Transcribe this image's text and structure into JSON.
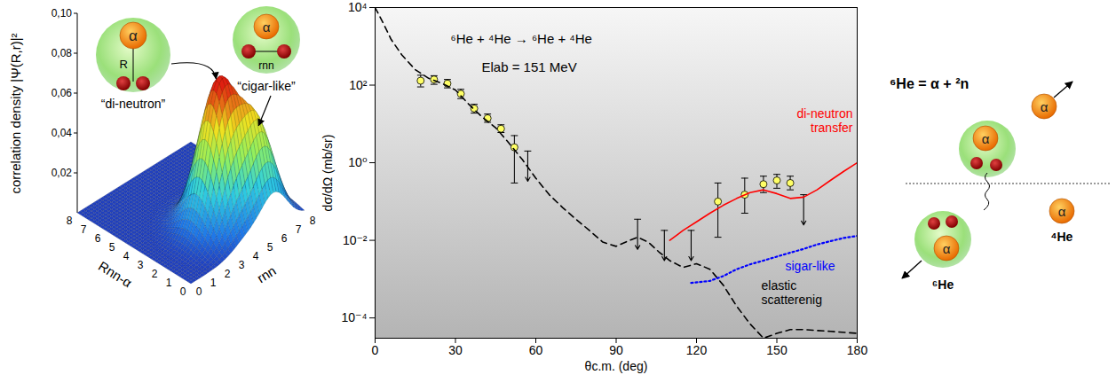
{
  "chart_data": {
    "type": "scatter",
    "title": "⁶He + ⁴He → ⁶He + ⁴He",
    "subtitle": "Elab = 151 MeV",
    "x_label": "θc.m. (deg)",
    "y_label": "dσ/dΩ (mb/sr)",
    "xlim": [
      0,
      180
    ],
    "xticks": [
      0,
      30,
      60,
      90,
      120,
      150,
      180
    ],
    "ylim": [
      3e-05,
      10000
    ],
    "yticks": [
      {
        "value": 10000,
        "label": "10⁴"
      },
      {
        "value": 100,
        "label": "10²"
      },
      {
        "value": 1,
        "label": "10⁰"
      },
      {
        "value": 0.01,
        "label": "10⁻²"
      },
      {
        "value": 0.0001,
        "label": "10⁻⁴"
      }
    ],
    "log": "y",
    "grid": false,
    "series": [
      {
        "type": "scatter",
        "marker": "circle",
        "color": "#ffff66",
        "x": [
          17,
          22,
          27,
          32,
          37,
          42,
          47,
          52,
          128,
          138,
          145,
          150,
          155
        ],
        "values": [
          130,
          140,
          110,
          60,
          25,
          14,
          7.5,
          2.5,
          0.1,
          0.15,
          0.28,
          0.35,
          0.3
        ],
        "lower": [
          90,
          105,
          85,
          45,
          19,
          11,
          6,
          0.3,
          0.012,
          0.05,
          0.17,
          0.22,
          0.2
        ],
        "upper": [
          180,
          175,
          140,
          78,
          32,
          18,
          9.5,
          5,
          0.3,
          0.4,
          0.45,
          0.5,
          0.45
        ]
      },
      {
        "type": "upper_limit",
        "marker": "arrow",
        "color": "#000000",
        "x": [
          57,
          98,
          108,
          118,
          160
        ],
        "values": [
          2.0,
          0.035,
          0.018,
          0.018,
          0.15
        ]
      },
      {
        "name": "elastic scatterenig",
        "type": "line",
        "line_style": "dashed",
        "color": "#000000",
        "x": [
          0,
          3,
          6,
          10,
          15,
          20,
          25,
          30,
          35,
          40,
          45,
          50,
          55,
          60,
          65,
          70,
          75,
          80,
          85,
          90,
          95,
          98,
          102,
          106,
          110,
          115,
          120,
          125,
          130,
          135,
          140,
          145,
          150,
          155,
          160,
          170,
          180
        ],
        "values": [
          10000,
          4000,
          1500,
          600,
          250,
          150,
          110,
          75,
          32,
          15,
          8,
          3.2,
          1.2,
          0.4,
          0.15,
          0.07,
          0.035,
          0.018,
          0.009,
          0.007,
          0.01,
          0.012,
          0.009,
          0.005,
          0.003,
          0.002,
          0.0025,
          0.0018,
          0.0007,
          0.0002,
          7e-05,
          3e-05,
          4e-05,
          5e-05,
          5e-05,
          4.5e-05,
          4e-05
        ]
      },
      {
        "name": "di-neutron transfer",
        "type": "line",
        "line_style": "solid",
        "color": "#ff0000",
        "x": [
          110,
          115,
          120,
          125,
          130,
          135,
          140,
          145,
          150,
          155,
          160,
          165,
          170,
          175,
          180
        ],
        "values": [
          0.01,
          0.018,
          0.03,
          0.05,
          0.08,
          0.12,
          0.17,
          0.2,
          0.16,
          0.12,
          0.13,
          0.2,
          0.35,
          0.6,
          1.0
        ]
      },
      {
        "name": "sigar-like",
        "type": "line",
        "line_style": "dotted",
        "color": "#0000ff",
        "x": [
          118,
          125,
          130,
          135,
          140,
          145,
          150,
          155,
          160,
          165,
          170,
          175,
          180
        ],
        "values": [
          0.0008,
          0.0009,
          0.0012,
          0.0018,
          0.0024,
          0.003,
          0.0038,
          0.0048,
          0.006,
          0.0078,
          0.0095,
          0.0115,
          0.013
        ]
      }
    ]
  },
  "surface_panel": {
    "type": "surface",
    "z_label": "correlation density |Ψ(R,r)|²",
    "x_label": "Rnn-α",
    "y_label": "rnn",
    "xlim": [
      0,
      8
    ],
    "xticks": [
      0,
      1,
      2,
      3,
      4,
      5,
      6,
      7,
      8
    ],
    "ylim": [
      0,
      8
    ],
    "yticks": [
      0,
      1,
      2,
      3,
      4,
      5,
      6,
      7,
      8
    ],
    "zlim": [
      0,
      0.1
    ],
    "zticks": [
      {
        "value": 0.02,
        "label": "0,02"
      },
      {
        "value": 0.04,
        "label": "0,04"
      },
      {
        "value": 0.06,
        "label": "0,06"
      },
      {
        "value": 0.08,
        "label": "0,08"
      },
      {
        "value": 0.1,
        "label": "0,10"
      }
    ],
    "peaks": [
      {
        "R": 2.2,
        "r": 4.1,
        "value": 0.072,
        "width": 1.0
      },
      {
        "R": 1.2,
        "r": 5.9,
        "value": 0.045,
        "width": 0.9
      }
    ],
    "insets": [
      {
        "label": "“di-neutron”",
        "core": "α",
        "coordinate": "R"
      },
      {
        "label": "“cigar-like”",
        "core": "α",
        "coordinate": "rnn"
      }
    ]
  },
  "diagram": {
    "title": "⁶He = α + ²n",
    "core": "α",
    "nucleus_labels": [
      "⁴He",
      "⁶He"
    ]
  }
}
